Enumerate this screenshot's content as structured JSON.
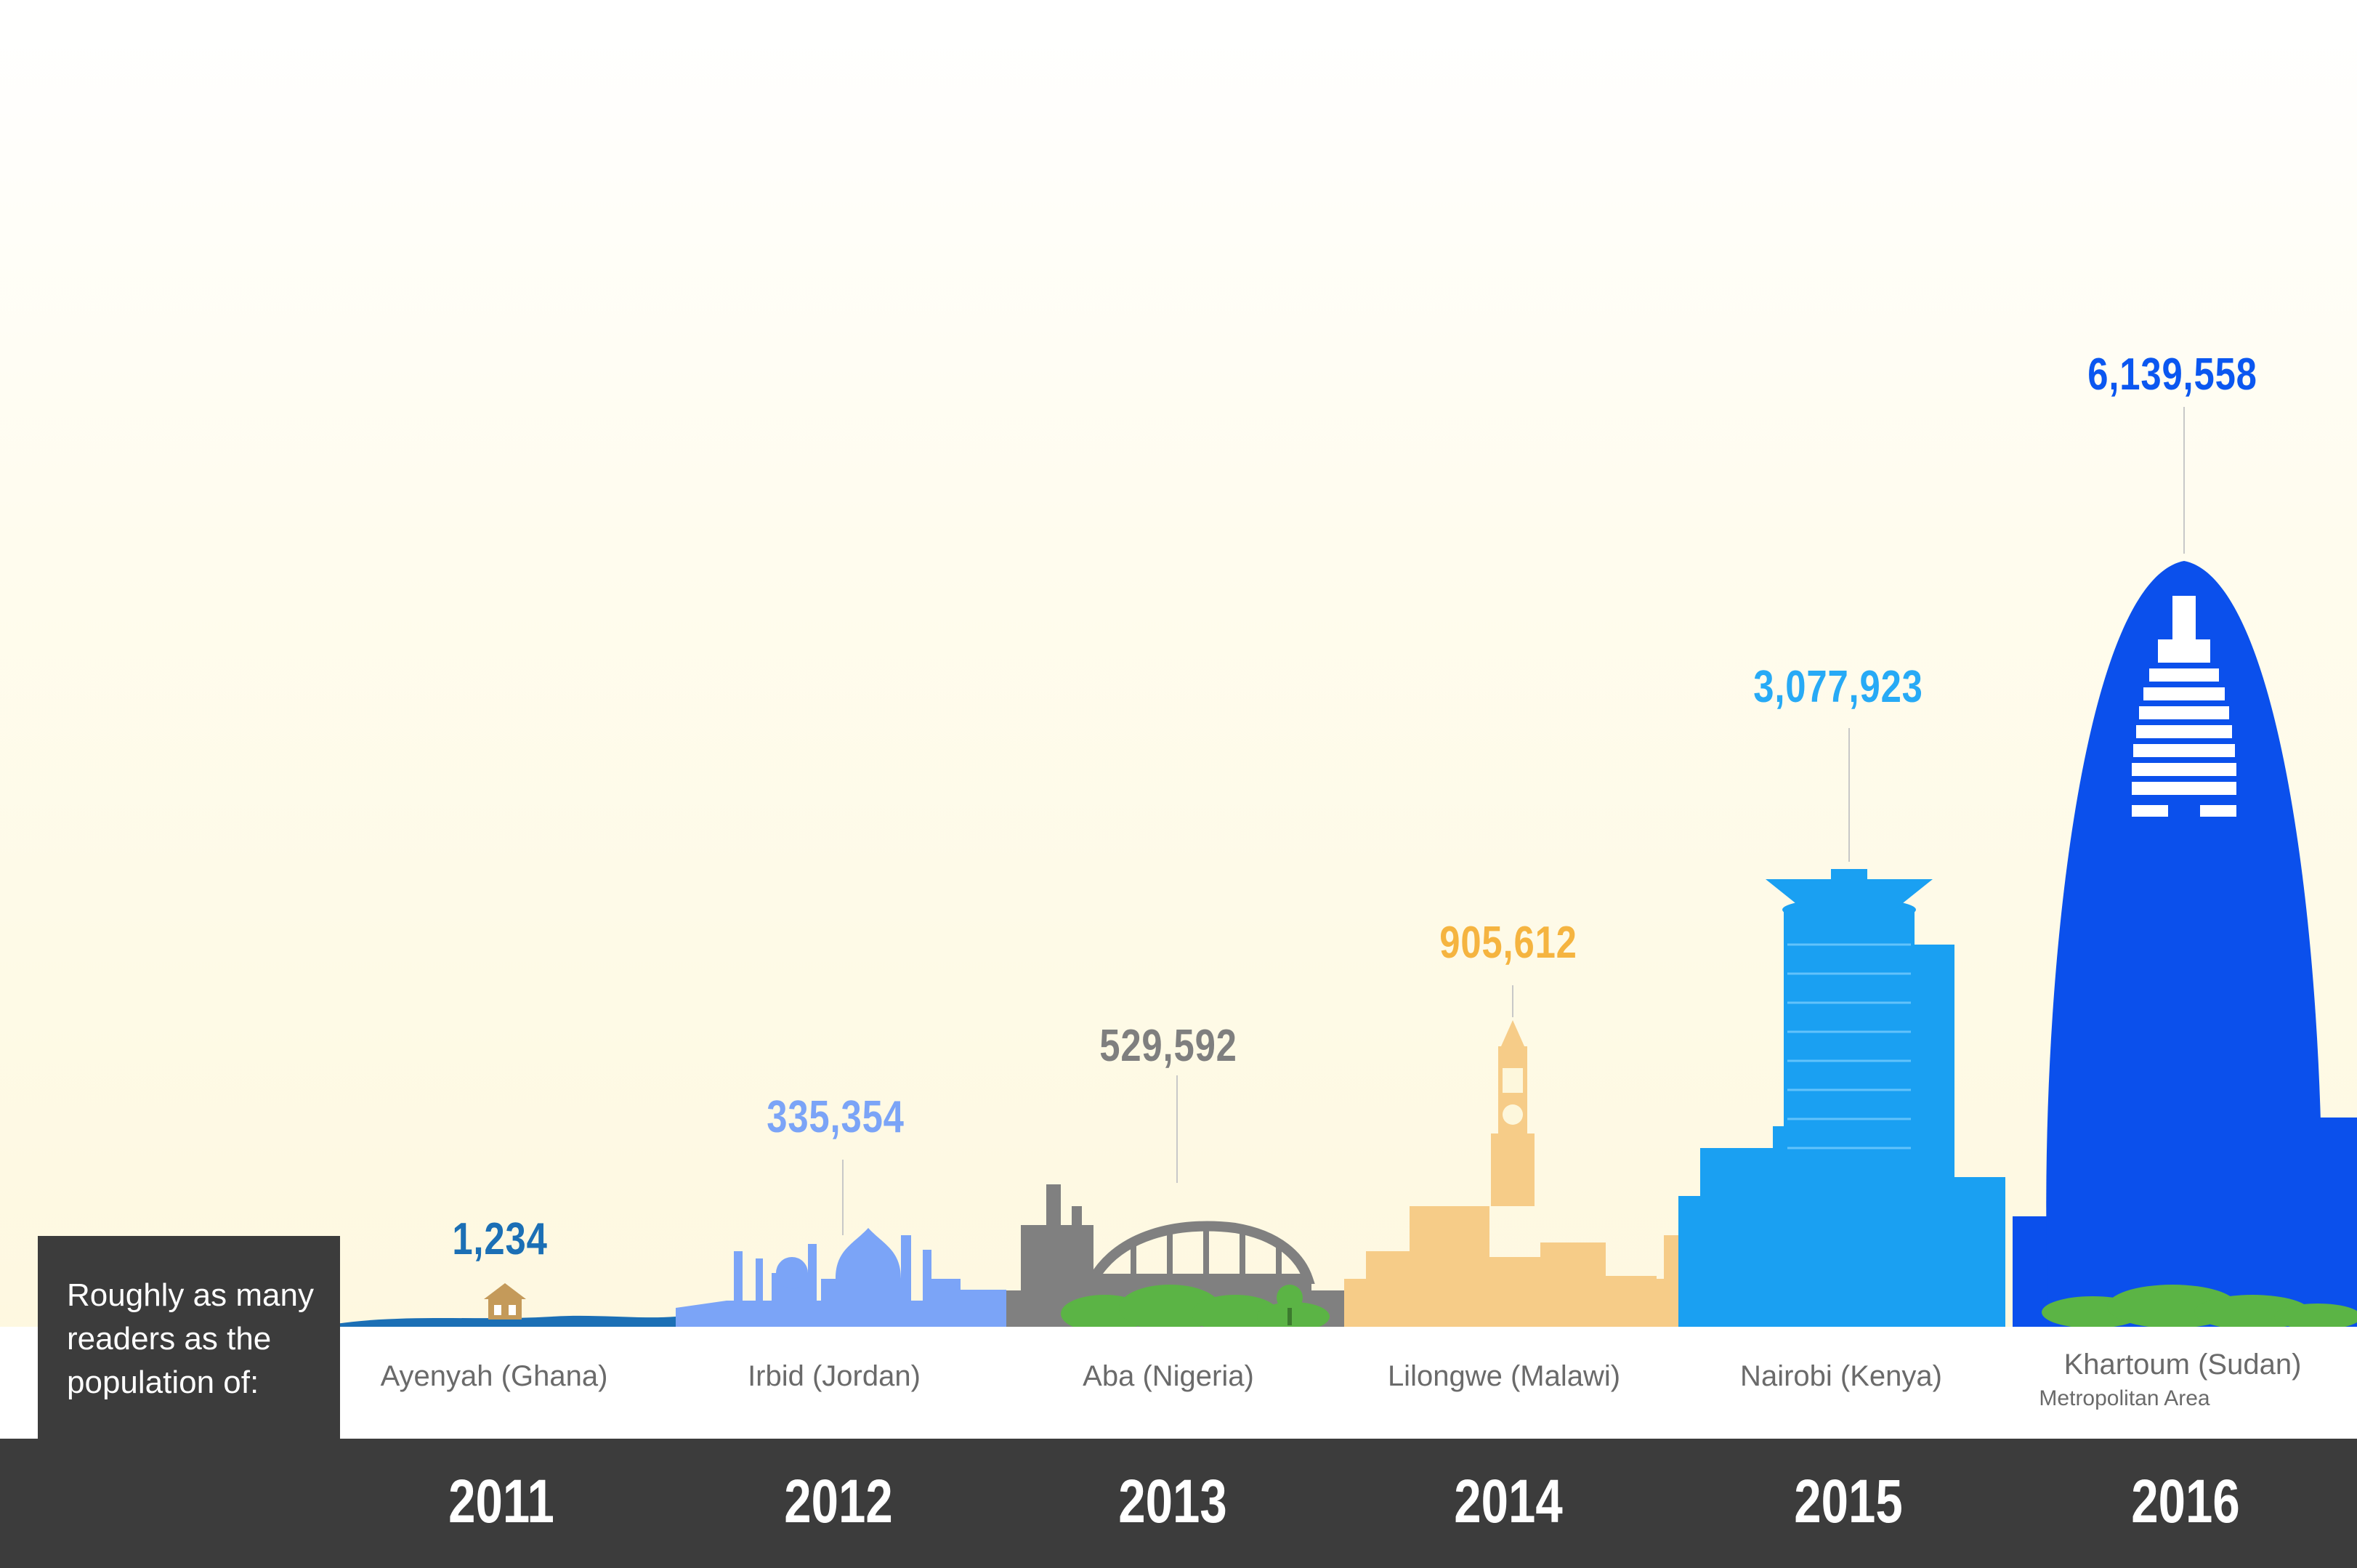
{
  "intro_label": "Roughly as many readers as the population of:",
  "entries": [
    {
      "year": "2011",
      "value": "1,234",
      "city": "Ayenyah (Ghana)",
      "subcity": "",
      "color": "#1b6fb5"
    },
    {
      "year": "2012",
      "value": "335,354",
      "city": "Irbid (Jordan)",
      "subcity": "",
      "color": "#7ba4f7"
    },
    {
      "year": "2013",
      "value": "529,592",
      "city": "Aba (Nigeria)",
      "subcity": "",
      "color": "#7f7f7f"
    },
    {
      "year": "2014",
      "value": "905,612",
      "city": "Lilongwe (Malawi)",
      "subcity": "",
      "color": "#f5b440"
    },
    {
      "year": "2015",
      "value": "3,077,923",
      "city": "Nairobi (Kenya)",
      "subcity": "",
      "color": "#27aaf6"
    },
    {
      "year": "2016",
      "value": "6,139,558",
      "city": "Khartoum (Sudan)",
      "subcity": "Metropolitan Area",
      "color": "#0b57f0"
    }
  ],
  "colors": {
    "ghana_water": "#1b6fb5",
    "ghana_hut": "#c49a5a",
    "irbid": "#7ba4f7",
    "aba": "#808080",
    "lilongwe": "#f6cc88",
    "nairobi": "#1aa0f2",
    "khartoum": "#0b50ec",
    "greenery": "#5bb445",
    "footer": "#3c3c3c"
  }
}
